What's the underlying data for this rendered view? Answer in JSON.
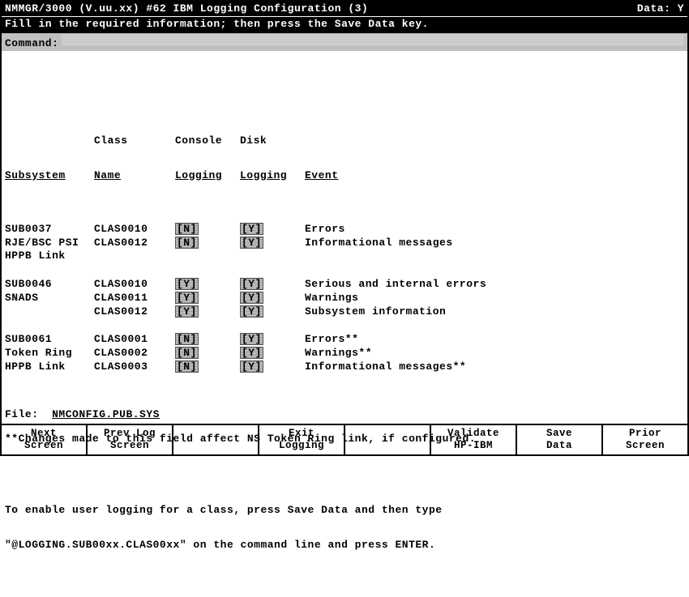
{
  "header": {
    "title_left": "NMMGR/3000 (V.uu.xx) #62  IBM Logging Configuration (3)",
    "data_label": "Data:",
    "data_value": "Y",
    "instruction": "Fill in the required information; then press the Save Data key.",
    "command_label": "Command:"
  },
  "columns": {
    "subsystem": "Subsystem",
    "class_l1": "Class",
    "class_l2": "Name",
    "console_l1": "Console",
    "console_l2": "Logging",
    "disk_l1": "Disk",
    "disk_l2": "Logging",
    "event": "Event"
  },
  "groups": [
    {
      "rows": [
        {
          "sub": "SUB0037",
          "class": "CLAS0010",
          "con": "[N]",
          "disk": "[Y]",
          "event": "Errors"
        },
        {
          "sub": "RJE/BSC PSI",
          "class": "CLAS0012",
          "con": "[N]",
          "disk": "[Y]",
          "event": "Informational messages"
        },
        {
          "sub": "HPPB Link",
          "class": "",
          "con": "",
          "disk": "",
          "event": ""
        }
      ]
    },
    {
      "rows": [
        {
          "sub": "SUB0046",
          "class": "CLAS0010",
          "con": "[Y]",
          "disk": "[Y]",
          "event": "Serious and internal errors"
        },
        {
          "sub": "SNADS",
          "class": "CLAS0011",
          "con": "[Y]",
          "disk": "[Y]",
          "event": "Warnings"
        },
        {
          "sub": "",
          "class": "CLAS0012",
          "con": "[Y]",
          "disk": "[Y]",
          "event": "Subsystem information"
        }
      ]
    },
    {
      "rows": [
        {
          "sub": "SUB0061",
          "class": "CLAS0001",
          "con": "[N]",
          "disk": "[Y]",
          "event": "Errors**"
        },
        {
          "sub": "Token Ring",
          "class": "CLAS0002",
          "con": "[N]",
          "disk": "[Y]",
          "event": "Warnings**"
        },
        {
          "sub": "HPPB Link",
          "class": "CLAS0003",
          "con": "[N]",
          "disk": "[Y]",
          "event": "Informational messages**"
        }
      ]
    }
  ],
  "notes": {
    "n1": "**Changes made to this field affect NS Token Ring link, if configured.",
    "n2": "To enable user logging for a class, press Save Data and then type",
    "n3": "\"@LOGGING.SUB00xx.CLAS00xx\" on the command line and press ENTER."
  },
  "file": {
    "label": "File:",
    "value": "NMCONFIG.PUB.SYS"
  },
  "fkeys": [
    {
      "l1": "Next",
      "l2": "Screen"
    },
    {
      "l1": "Prev Log",
      "l2": "Screen"
    },
    {
      "l1": "",
      "l2": ""
    },
    {
      "l1": "Exit",
      "l2": "Logging"
    },
    {
      "l1": "",
      "l2": ""
    },
    {
      "l1": "Validate",
      "l2": "HP-IBM"
    },
    {
      "l1": "Save",
      "l2": "Data"
    },
    {
      "l1": "Prior",
      "l2": "Screen"
    }
  ]
}
